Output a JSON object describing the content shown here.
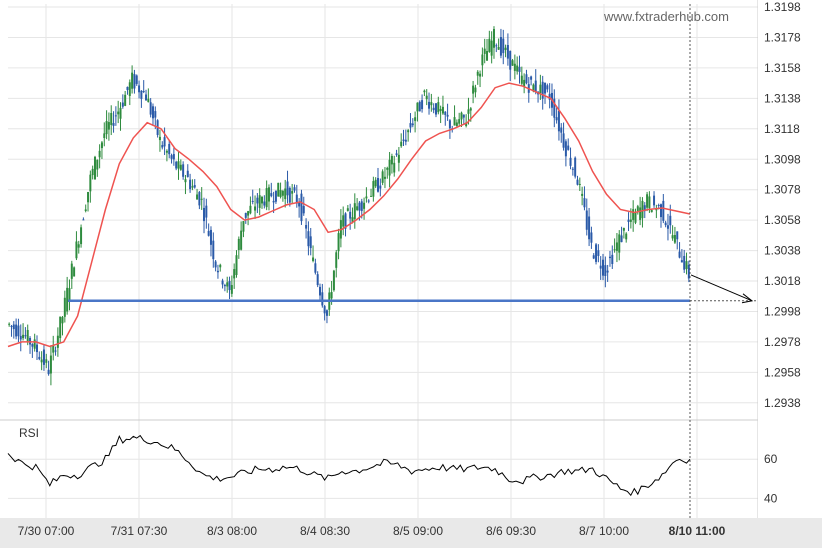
{
  "watermark": "www.fxtraderhub.com",
  "chart_data": {
    "type": "candlestick",
    "instrument_panel": {
      "y_ticks": [
        "1.3198",
        "1.3178",
        "1.3158",
        "1.3138",
        "1.3118",
        "1.3098",
        "1.3078",
        "1.3058",
        "1.3038",
        "1.3018",
        "1.2998",
        "1.2978",
        "1.2958",
        "1.2938"
      ],
      "ylim": [
        1.2928,
        1.32
      ],
      "support_level": 1.3005,
      "projection": {
        "from": 1.3022,
        "to": 1.3005
      },
      "price_series_approx": [
        1.299,
        1.2985,
        1.2975,
        1.296,
        1.2995,
        1.304,
        1.3085,
        1.3115,
        1.313,
        1.315,
        1.314,
        1.311,
        1.3095,
        1.3085,
        1.307,
        1.303,
        1.301,
        1.306,
        1.307,
        1.3075,
        1.3078,
        1.307,
        1.303,
        1.2995,
        1.3055,
        1.3065,
        1.3075,
        1.3085,
        1.31,
        1.312,
        1.314,
        1.313,
        1.312,
        1.3125,
        1.316,
        1.3178,
        1.3165,
        1.315,
        1.3145,
        1.314,
        1.311,
        1.3085,
        1.304,
        1.3025,
        1.3045,
        1.306,
        1.307,
        1.3065,
        1.3045,
        1.3022
      ],
      "ma_series_approx": [
        1.2975,
        1.2978,
        1.2978,
        1.2975,
        1.2978,
        1.2995,
        1.303,
        1.3065,
        1.3095,
        1.3112,
        1.3122,
        1.3118,
        1.3105,
        1.3098,
        1.309,
        1.308,
        1.3065,
        1.3058,
        1.306,
        1.3064,
        1.3068,
        1.307,
        1.3065,
        1.305,
        1.3052,
        1.3058,
        1.3065,
        1.3074,
        1.3085,
        1.3098,
        1.311,
        1.3115,
        1.3118,
        1.3122,
        1.3132,
        1.3145,
        1.3148,
        1.3146,
        1.3142,
        1.3138,
        1.3125,
        1.311,
        1.309,
        1.3075,
        1.3065,
        1.3063,
        1.3065,
        1.3066,
        1.3064,
        1.3062
      ]
    },
    "rsi_panel": {
      "label": "RSI",
      "y_ticks": [
        "60",
        "40"
      ],
      "ylim": [
        30,
        80
      ],
      "rsi_series_approx": [
        63,
        58,
        56,
        47,
        52,
        52,
        56,
        60,
        70,
        71,
        70,
        68,
        65,
        59,
        52,
        50,
        51,
        53,
        55,
        55,
        56,
        55,
        52,
        50,
        54,
        54,
        56,
        58,
        57,
        54,
        55,
        56,
        55,
        55,
        56,
        55,
        50,
        49,
        51,
        52,
        54,
        54,
        55,
        50,
        45,
        43,
        47,
        52,
        60,
        60
      ]
    },
    "x_ticks": [
      "7/30 07:00",
      "7/31 07:30",
      "8/3 08:00",
      "8/4 08:30",
      "8/5 09:00",
      "8/6 09:30",
      "8/7 10:00",
      "8/10 11:00"
    ],
    "grid": true
  }
}
